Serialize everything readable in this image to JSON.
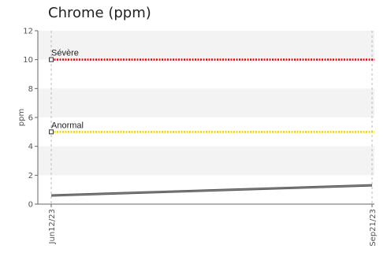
{
  "chart_data": {
    "type": "line",
    "title": "Chrome (ppm)",
    "xlabel": "",
    "ylabel": "ppm",
    "ylim": [
      0,
      12
    ],
    "yticks": [
      0,
      2,
      4,
      6,
      8,
      10,
      12
    ],
    "x": [
      "Jun12/23",
      "Sep21/23"
    ],
    "xtick_labels": [
      "Jun12/23",
      "Sep21/23"
    ],
    "series": [
      {
        "values": [
          0.6,
          1.3
        ],
        "color": "#555555"
      }
    ],
    "thresholds": [
      {
        "label": "Sévère",
        "value": 10,
        "color": "#e8000b"
      },
      {
        "label": "Anormal",
        "value": 5,
        "color": "#f0d000"
      }
    ],
    "grid": "horizontal bands, dashed vertical at x ticks",
    "legend": "none"
  }
}
